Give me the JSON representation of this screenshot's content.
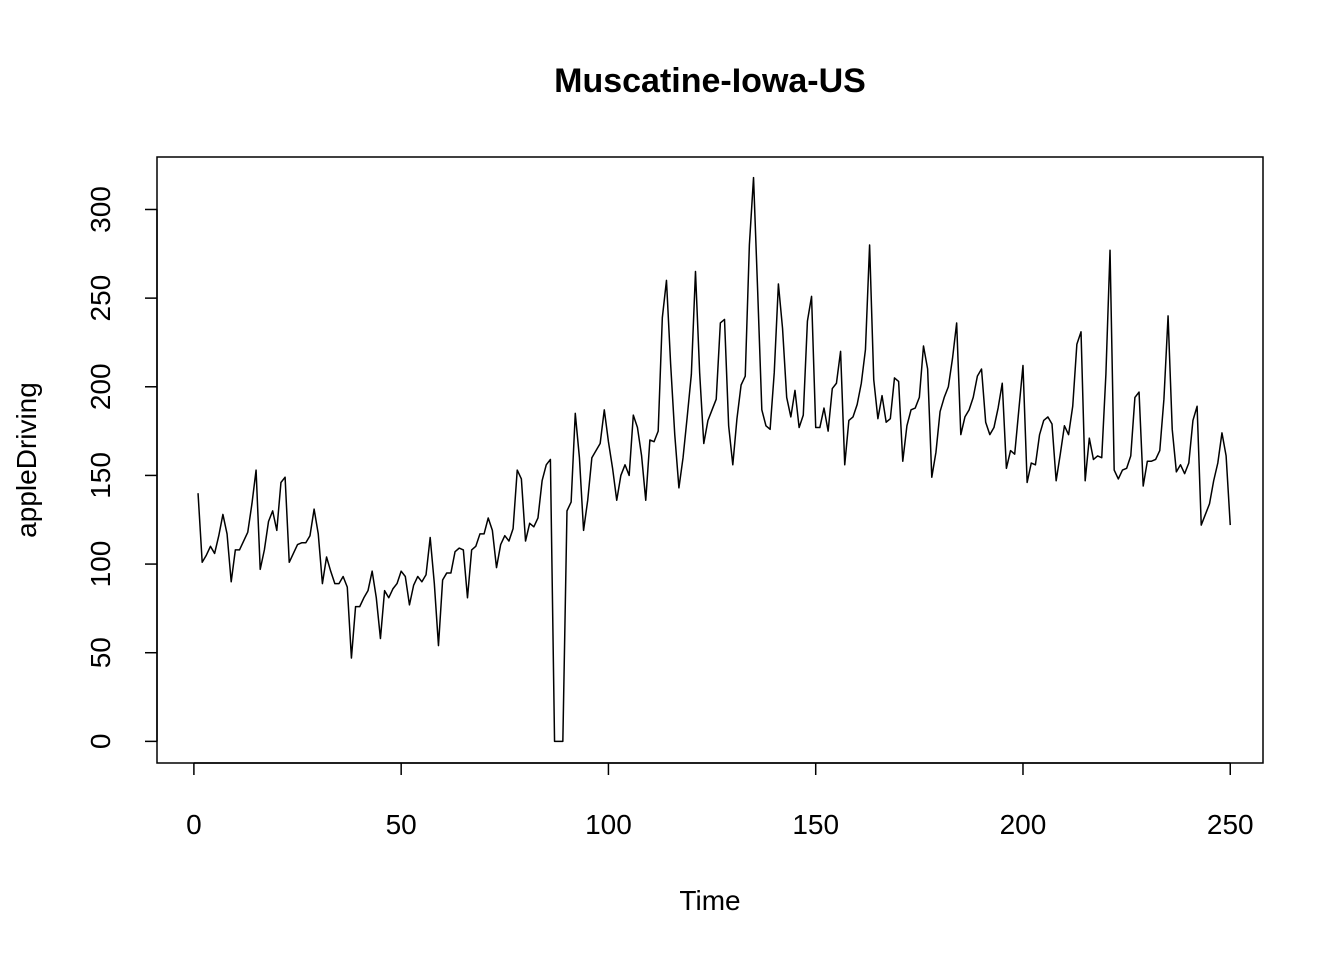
{
  "chart_data": {
    "type": "line",
    "title": "Muscatine-Iowa-US",
    "xlabel": "Time",
    "ylabel": "appleDriving",
    "xlim": [
      -8.9,
      257.9
    ],
    "ylim": [
      -12.2,
      329.6
    ],
    "xticks": [
      0,
      50,
      100,
      150,
      200,
      250
    ],
    "yticks": [
      0,
      50,
      100,
      150,
      200,
      250,
      300
    ],
    "grid": false,
    "series": [
      {
        "color": "#000000",
        "x_start": 1,
        "values": [
          140,
          101,
          105,
          110,
          106,
          116,
          128,
          117,
          90,
          108,
          108,
          113,
          118,
          134,
          153,
          97,
          108,
          124,
          130,
          119,
          146,
          149,
          101,
          106,
          111,
          112,
          112,
          116,
          131,
          117,
          89,
          104,
          96,
          89,
          89,
          93,
          87,
          47,
          76,
          76,
          81,
          85,
          96,
          81,
          58,
          85,
          81,
          86,
          89,
          96,
          93,
          77,
          88,
          93,
          90,
          94,
          115,
          89,
          54,
          91,
          95,
          95,
          107,
          109,
          108,
          81,
          108,
          110,
          117,
          117,
          126,
          119,
          98,
          111,
          116,
          113,
          120,
          153,
          148,
          113,
          123,
          121,
          126,
          147,
          156,
          159,
          0,
          0,
          0,
          130,
          135,
          185,
          160,
          119,
          136,
          160,
          164,
          168,
          187,
          169,
          154,
          136,
          150,
          156,
          150,
          184,
          177,
          161,
          136,
          170,
          169,
          175,
          239,
          260,
          213,
          173,
          143,
          160,
          183,
          207,
          265,
          208,
          168,
          181,
          187,
          193,
          236,
          238,
          178,
          156,
          182,
          201,
          206,
          280,
          318,
          254,
          187,
          178,
          176,
          208,
          258,
          233,
          194,
          183,
          198,
          177,
          184,
          237,
          251,
          177,
          177,
          188,
          175,
          199,
          202,
          220,
          156,
          181,
          183,
          190,
          202,
          221,
          280,
          204,
          182,
          195,
          180,
          182,
          205,
          203,
          158,
          178,
          187,
          188,
          194,
          223,
          210,
          149,
          163,
          186,
          194,
          200,
          216,
          236,
          173,
          183,
          187,
          194,
          206,
          210,
          180,
          173,
          177,
          188,
          202,
          154,
          164,
          162,
          187,
          212,
          146,
          157,
          156,
          173,
          181,
          183,
          179,
          147,
          162,
          178,
          173,
          189,
          224,
          231,
          147,
          171,
          159,
          161,
          160,
          207,
          277,
          153,
          148,
          153,
          154,
          161,
          194,
          197,
          144,
          158,
          158,
          159,
          164,
          193,
          240,
          176,
          152,
          156,
          151,
          157,
          181,
          189,
          122,
          128,
          134,
          147,
          157,
          174,
          161,
          122
        ]
      }
    ]
  }
}
